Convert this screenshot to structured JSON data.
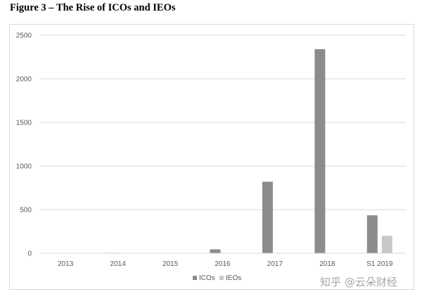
{
  "figure": {
    "title": "Figure 3 – The Rise of ICOs and IEOs"
  },
  "watermark": "知乎 @云朵财经",
  "chart_data": {
    "type": "bar",
    "categories": [
      "2013",
      "2014",
      "2015",
      "2016",
      "2017",
      "2018",
      "S1 2019"
    ],
    "series": [
      {
        "name": "ICOs",
        "values": [
          0,
          5,
          0,
          45,
          820,
          2340,
          435
        ],
        "color": "#8c8c8c"
      },
      {
        "name": "IEOs",
        "values": [
          0,
          0,
          0,
          0,
          0,
          3,
          200
        ],
        "color": "#c8c8c8"
      }
    ],
    "ylim": [
      0,
      2500
    ],
    "yticks": [
      0,
      500,
      1000,
      1500,
      2000,
      2500
    ],
    "grid": true,
    "legend": "bottom"
  }
}
